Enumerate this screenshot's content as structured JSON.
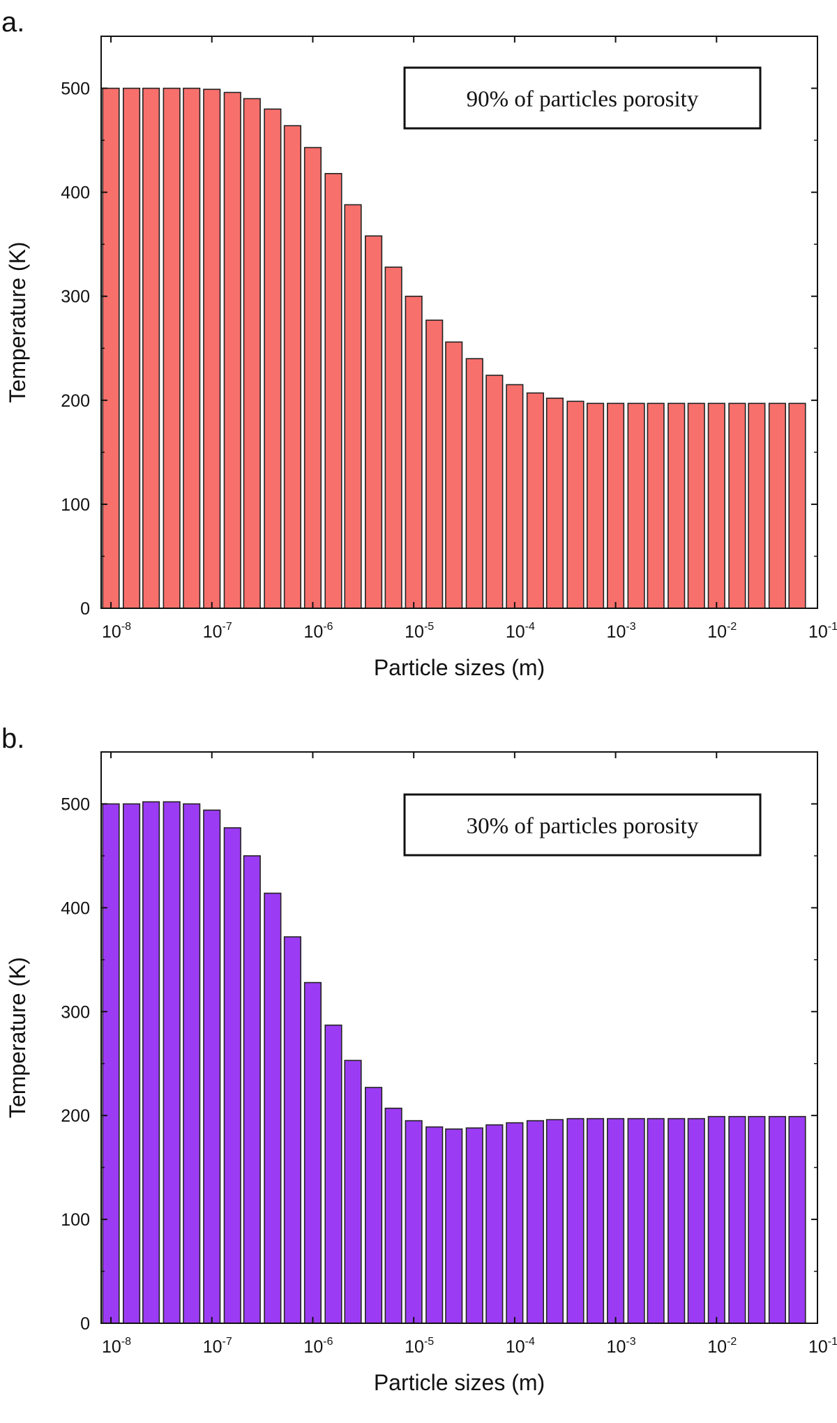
{
  "chart_data": [
    {
      "type": "bar",
      "panel_label": "a.",
      "annotation": "90% of particles  porosity",
      "xlabel": "Particle sizes (m)",
      "ylabel": "Temperature (K)",
      "x_scale": "log",
      "xlim": [
        8e-09,
        0.1
      ],
      "ylim": [
        0,
        550
      ],
      "yticks": [
        0,
        100,
        200,
        300,
        400,
        500
      ],
      "xticks": [
        {
          "base": "10",
          "exp": "-8"
        },
        {
          "base": "10",
          "exp": "-7"
        },
        {
          "base": "10",
          "exp": "-6"
        },
        {
          "base": "10",
          "exp": "-5"
        },
        {
          "base": "10",
          "exp": "-4"
        },
        {
          "base": "10",
          "exp": "-3"
        },
        {
          "base": "10",
          "exp": "-2"
        },
        {
          "base": "10",
          "exp": "-1"
        }
      ],
      "bar_color": "#f8706c",
      "x": [
        1e-08,
        1.6e-08,
        2.5e-08,
        4e-08,
        6.3e-08,
        1e-07,
        1.6e-07,
        2.5e-07,
        4e-07,
        6.3e-07,
        1e-06,
        1.6e-06,
        2.5e-06,
        4e-06,
        6.3e-06,
        1e-05,
        1.6e-05,
        2.5e-05,
        4e-05,
        6.3e-05,
        0.0001,
        0.00016,
        0.00025,
        0.0004,
        0.00063,
        0.001,
        0.0016,
        0.0025,
        0.004,
        0.0063,
        0.01,
        0.016,
        0.025,
        0.04,
        0.063
      ],
      "values": [
        500,
        500,
        500,
        500,
        500,
        499,
        496,
        490,
        480,
        464,
        443,
        418,
        388,
        358,
        328,
        300,
        277,
        256,
        240,
        224,
        215,
        207,
        202,
        199,
        197,
        197,
        197,
        197,
        197,
        197,
        197,
        197,
        197,
        197,
        197
      ]
    },
    {
      "type": "bar",
      "panel_label": "b.",
      "annotation": "30% of particles  porosity",
      "xlabel": "Particle sizes (m)",
      "ylabel": "Temperature (K)",
      "x_scale": "log",
      "xlim": [
        8e-09,
        0.1
      ],
      "ylim": [
        0,
        550
      ],
      "yticks": [
        0,
        100,
        200,
        300,
        400,
        500
      ],
      "xticks": [
        {
          "base": "10",
          "exp": "-8"
        },
        {
          "base": "10",
          "exp": "-7"
        },
        {
          "base": "10",
          "exp": "-6"
        },
        {
          "base": "10",
          "exp": "-5"
        },
        {
          "base": "10",
          "exp": "-4"
        },
        {
          "base": "10",
          "exp": "-3"
        },
        {
          "base": "10",
          "exp": "-2"
        },
        {
          "base": "10",
          "exp": "-1"
        }
      ],
      "bar_color": "#9b3cf4",
      "x": [
        1e-08,
        1.6e-08,
        2.5e-08,
        4e-08,
        6.3e-08,
        1e-07,
        1.6e-07,
        2.5e-07,
        4e-07,
        6.3e-07,
        1e-06,
        1.6e-06,
        2.5e-06,
        4e-06,
        6.3e-06,
        1e-05,
        1.6e-05,
        2.5e-05,
        4e-05,
        6.3e-05,
        0.0001,
        0.00016,
        0.00025,
        0.0004,
        0.00063,
        0.001,
        0.0016,
        0.0025,
        0.004,
        0.0063,
        0.01,
        0.016,
        0.025,
        0.04,
        0.063
      ],
      "values": [
        500,
        500,
        502,
        502,
        500,
        494,
        477,
        450,
        414,
        372,
        328,
        287,
        253,
        227,
        207,
        195,
        189,
        187,
        188,
        191,
        193,
        195,
        196,
        197,
        197,
        197,
        197,
        197,
        197,
        197,
        199,
        199,
        199,
        199,
        199
      ]
    }
  ]
}
